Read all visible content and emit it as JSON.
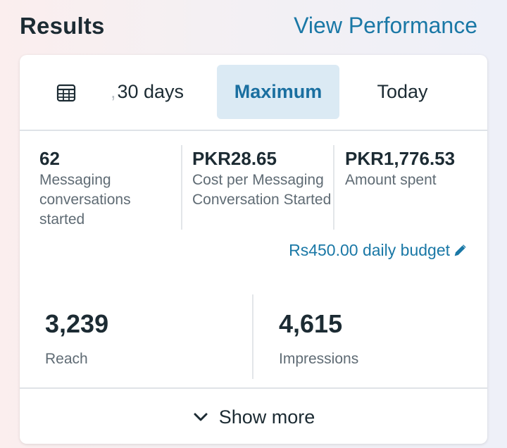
{
  "header": {
    "title": "Results",
    "link": "View Performance"
  },
  "tabs": [
    {
      "label": "30 days",
      "icon": "calendar-icon"
    },
    {
      "label": "Maximum",
      "selected": true
    },
    {
      "label": "Today"
    }
  ],
  "metrics": [
    {
      "value": "62",
      "label": "Messaging conversations started"
    },
    {
      "value": "PKR28.65",
      "label": "Cost per Messaging Conversation Started"
    },
    {
      "value": "PKR1,776.53",
      "label": "Amount spent"
    }
  ],
  "budget": {
    "label": "Rs450.00 daily budget",
    "icon": "pencil-icon"
  },
  "summary": [
    {
      "value": "3,239",
      "label": "Reach"
    },
    {
      "value": "4,615",
      "label": "Impressions"
    }
  ],
  "footer": {
    "label": "Show more",
    "icon": "chevron-down-icon"
  },
  "colors": {
    "accent": "#1a78a6",
    "selected_tab_bg": "#dbeaf4",
    "text_primary": "#1c2b33",
    "text_secondary": "#5f6b74"
  }
}
